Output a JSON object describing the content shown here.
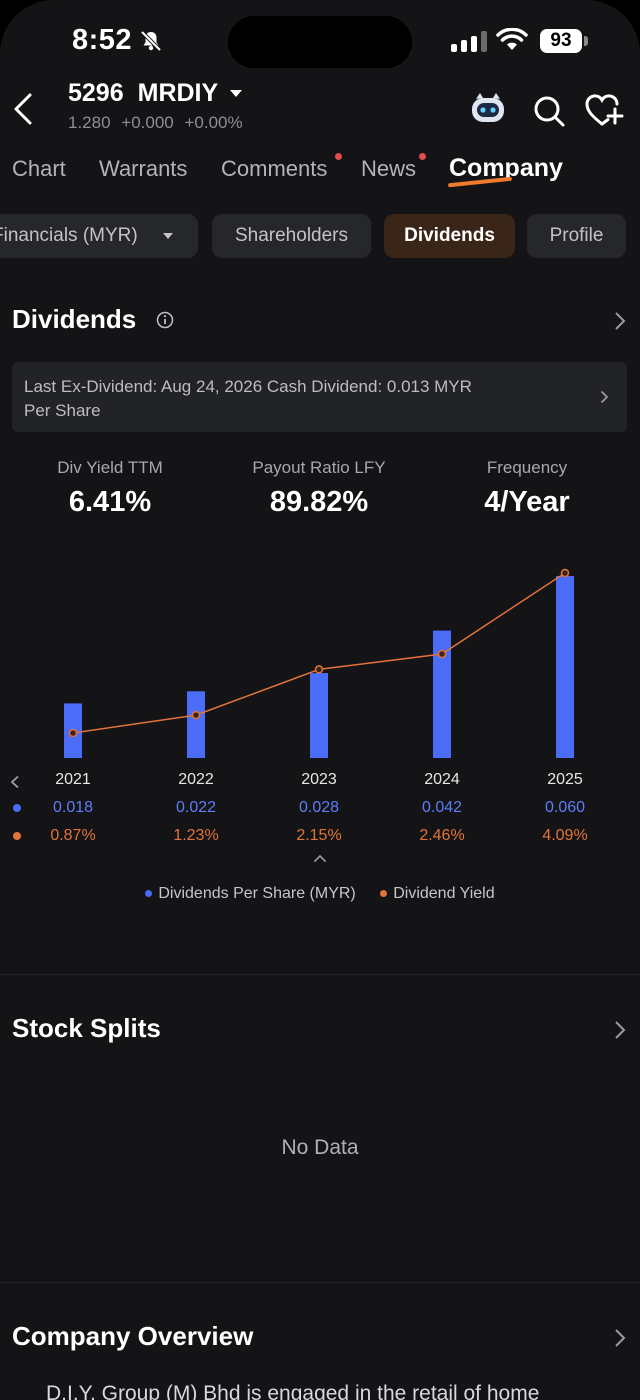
{
  "status_bar": {
    "time": "8:52",
    "battery": "93"
  },
  "header": {
    "code": "5296",
    "name": "MRDIY",
    "price": "1.280",
    "change": "+0.000",
    "change_pct": "+0.00%"
  },
  "tabs": [
    {
      "label": "Chart",
      "active": false,
      "dot": false
    },
    {
      "label": "Warrants",
      "active": false,
      "dot": false
    },
    {
      "label": "Comments",
      "active": false,
      "dot": true
    },
    {
      "label": "News",
      "active": false,
      "dot": true
    },
    {
      "label": "Company",
      "active": true,
      "dot": false
    }
  ],
  "subtabs": [
    {
      "label": "Financials (MYR)",
      "active": false
    },
    {
      "label": "Shareholders",
      "active": false
    },
    {
      "label": "Dividends",
      "active": true
    },
    {
      "label": "Profile",
      "active": false
    }
  ],
  "dividends": {
    "title": "Dividends",
    "ex_dividend_line1": "Last Ex-Dividend: Aug 24, 2026 Cash Dividend: 0.013 MYR",
    "ex_dividend_line2": "Per Share",
    "stats": [
      {
        "label": "Div Yield TTM",
        "value": "6.41%"
      },
      {
        "label": "Payout Ratio LFY",
        "value": "89.82%"
      },
      {
        "label": "Frequency",
        "value": "4/Year"
      }
    ]
  },
  "chart_data": {
    "type": "bar",
    "categories": [
      "2021",
      "2022",
      "2023",
      "2024",
      "2025"
    ],
    "series": [
      {
        "name": "Dividends Per Share (MYR)",
        "type": "bar",
        "color": "#4a6cf7",
        "values": [
          0.018,
          0.022,
          0.028,
          0.042,
          0.06
        ],
        "labels": [
          "0.018",
          "0.022",
          "0.028",
          "0.042",
          "0.060"
        ]
      },
      {
        "name": "Dividend Yield",
        "type": "line",
        "color": "#e2733a",
        "values": [
          0.87,
          1.23,
          2.15,
          2.46,
          4.09
        ],
        "labels": [
          "0.87%",
          "1.23%",
          "2.15%",
          "2.46%",
          "4.09%"
        ]
      }
    ],
    "grid": false,
    "legend": "bottom"
  },
  "stock_splits": {
    "title": "Stock Splits",
    "empty_text": "No Data"
  },
  "company_overview": {
    "title": "Company Overview",
    "text": "D.I.Y. Group (M) Bhd is engaged in the retail of home"
  }
}
